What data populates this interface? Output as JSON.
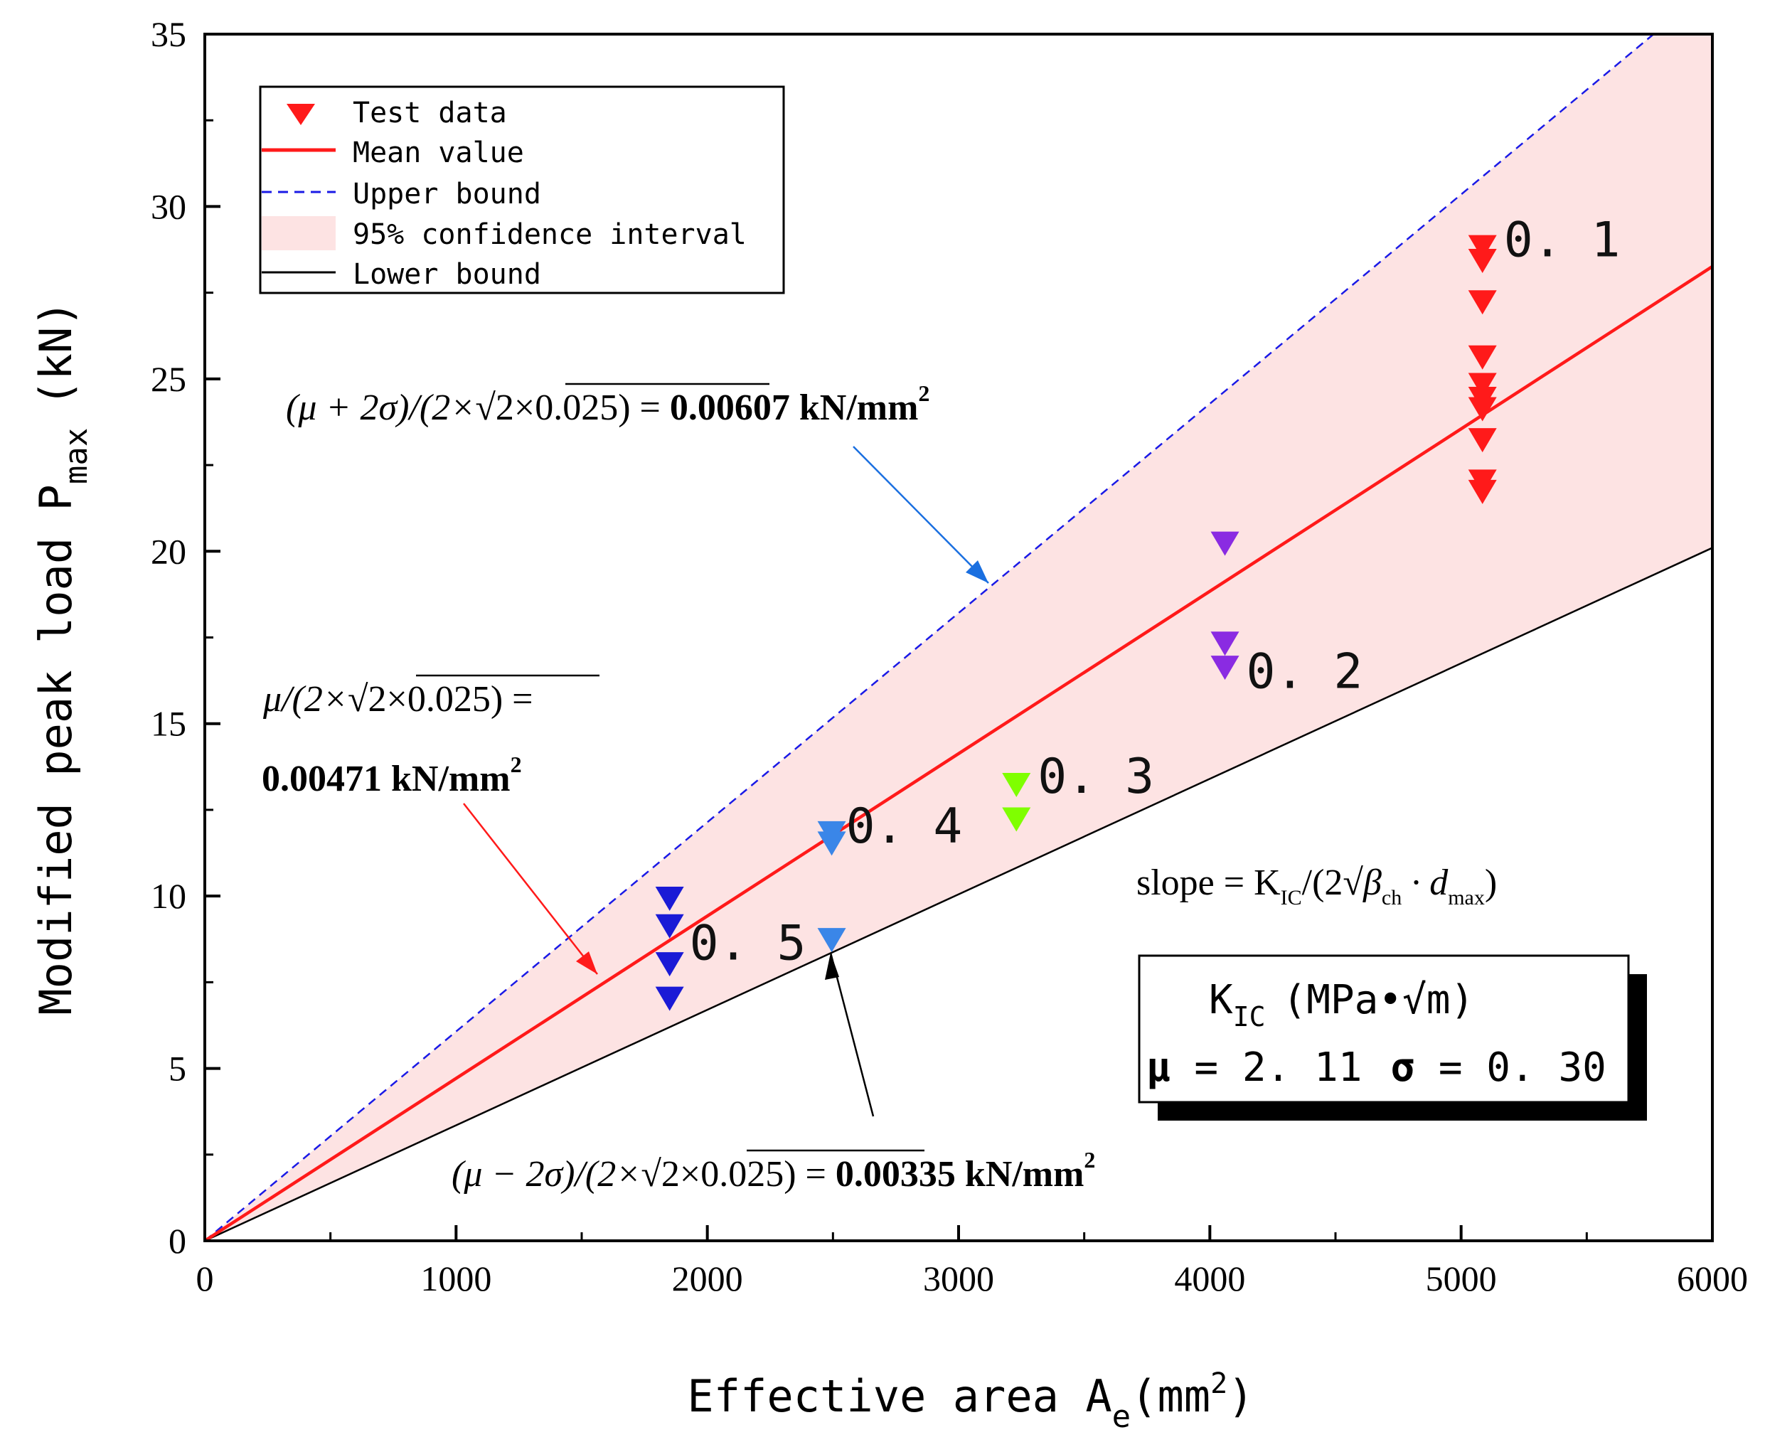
{
  "chart_data": {
    "type": "scatter",
    "xlabel": "Effective area A",
    "xlabel_sub": "e",
    "xlabel_unit": "(mm",
    "xlabel_unit_sup": "2",
    "xlabel_unit_close": ")",
    "ylabel": "Modified peak load P",
    "ylabel_sub": "max",
    "ylabel_unit": "(kN)",
    "xlim": [
      0,
      6000
    ],
    "ylim": [
      0,
      35
    ],
    "x_ticks": [
      "0",
      "1000",
      "2000",
      "3000",
      "4000",
      "5000",
      "6000"
    ],
    "y_ticks": [
      "0",
      "5",
      "10",
      "15",
      "20",
      "25",
      "30",
      "35"
    ],
    "legend": {
      "position": "top-left",
      "entries": [
        "Test data",
        "Mean value",
        "Upper bound",
        "95% confidence interval",
        "Lower bound"
      ]
    },
    "lines": {
      "mean_slope": 0.00471,
      "upper_slope": 0.00607,
      "lower_slope": 0.00335
    },
    "groups": [
      {
        "label": "0. 1",
        "color": "#ff1a1a",
        "x": 5085,
        "y": [
          28.8,
          28.4,
          27.2,
          25.6,
          24.8,
          24.4,
          24.1,
          23.2,
          22.0,
          21.7
        ]
      },
      {
        "label": "0. 2",
        "color": "#8a2be2",
        "x": 4060,
        "y": [
          20.2,
          17.3,
          16.6
        ]
      },
      {
        "label": "0. 3",
        "color": "#7fff00",
        "x": 3230,
        "y": [
          13.2,
          12.2
        ]
      },
      {
        "label": "0. 4",
        "color": "#3a86e8",
        "x": 2495,
        "y": [
          11.8,
          11.5,
          8.7
        ]
      },
      {
        "label": "0. 5",
        "color": "#1a1ad6",
        "x": 1850,
        "y": [
          9.9,
          9.1,
          8.0,
          7.0
        ]
      }
    ],
    "annotations": {
      "upper_formula_left": "(μ + 2σ)/(2×",
      "upper_formula_rad": "2×0.025",
      "upper_formula_right": ") = ",
      "upper_value": "0.00607 kN/mm",
      "upper_sup": "2",
      "mean_formula_left": "μ/(2×",
      "mean_formula_rad": "2×0.025",
      "mean_formula_right": ") =",
      "mean_value": "0.00471 kN/mm",
      "mean_sup": "2",
      "lower_formula_left": "(μ − 2σ)/(2×",
      "lower_formula_rad": "2×0.025",
      "lower_formula_right": ") = ",
      "lower_value": "0.00335 kN/mm",
      "lower_sup": "2",
      "slope_left": "slope = K",
      "slope_sub_ic": "IC",
      "slope_mid": "/(2",
      "slope_beta": "β",
      "slope_sub_ch": "ch",
      "slope_dot": " · d",
      "slope_sub_max": "max",
      "slope_right": ")"
    },
    "kic_box": {
      "title": "K",
      "title_sub": "IC",
      "title_unit": "(MPa•√m)",
      "mu_label": "μ",
      "mu_value": " = 2. 11",
      "sigma_label": "σ",
      "sigma_value": " = 0. 30"
    }
  }
}
